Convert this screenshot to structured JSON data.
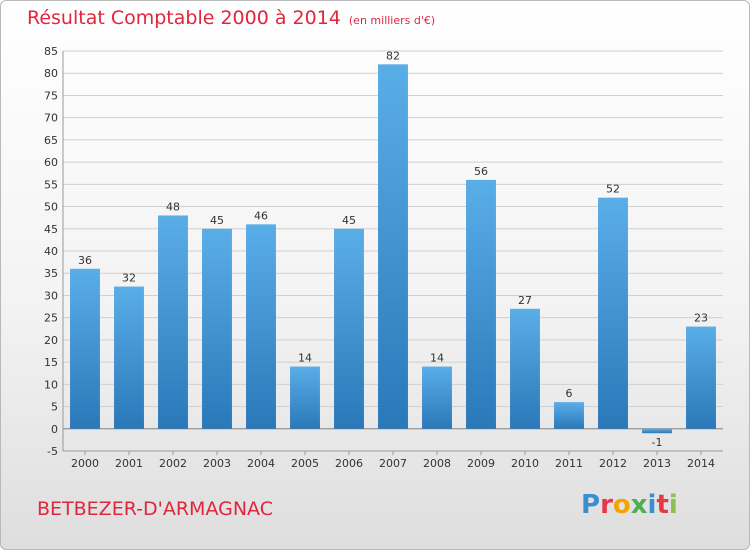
{
  "header": {
    "title": "Résultat Comptable 2000 à 2014",
    "subtitle": "(en milliers d'€)"
  },
  "footer": {
    "commune": "BETBEZER-D'ARMAGNAC",
    "brand_letters": [
      "P",
      "r",
      "o",
      "x",
      "i",
      "t",
      "i"
    ],
    "brand_colors": [
      "#3a8fd0",
      "#e63946",
      "#f4a300",
      "#4caf50",
      "#3a8fd0",
      "#e63946",
      "#8bc34a"
    ]
  },
  "colors": {
    "title": "#e0263d",
    "bar_light": "#5aaee8",
    "bar_dark": "#2a78b8",
    "grid": "#cfcfcf"
  },
  "chart_data": {
    "type": "bar",
    "title": "Résultat Comptable 2000 à 2014",
    "subtitle": "(en milliers d'€)",
    "categories": [
      "2000",
      "2001",
      "2002",
      "2003",
      "2004",
      "2005",
      "2006",
      "2007",
      "2008",
      "2009",
      "2010",
      "2011",
      "2012",
      "2013",
      "2014"
    ],
    "values": [
      36,
      32,
      48,
      45,
      46,
      14,
      45,
      82,
      14,
      56,
      27,
      6,
      52,
      -1,
      23
    ],
    "ylim": [
      -5,
      85
    ],
    "yticks": [
      -5,
      0,
      5,
      10,
      15,
      20,
      25,
      30,
      35,
      40,
      45,
      50,
      55,
      60,
      65,
      70,
      75,
      80,
      85
    ],
    "grid": true,
    "xlabel": "",
    "ylabel": ""
  }
}
